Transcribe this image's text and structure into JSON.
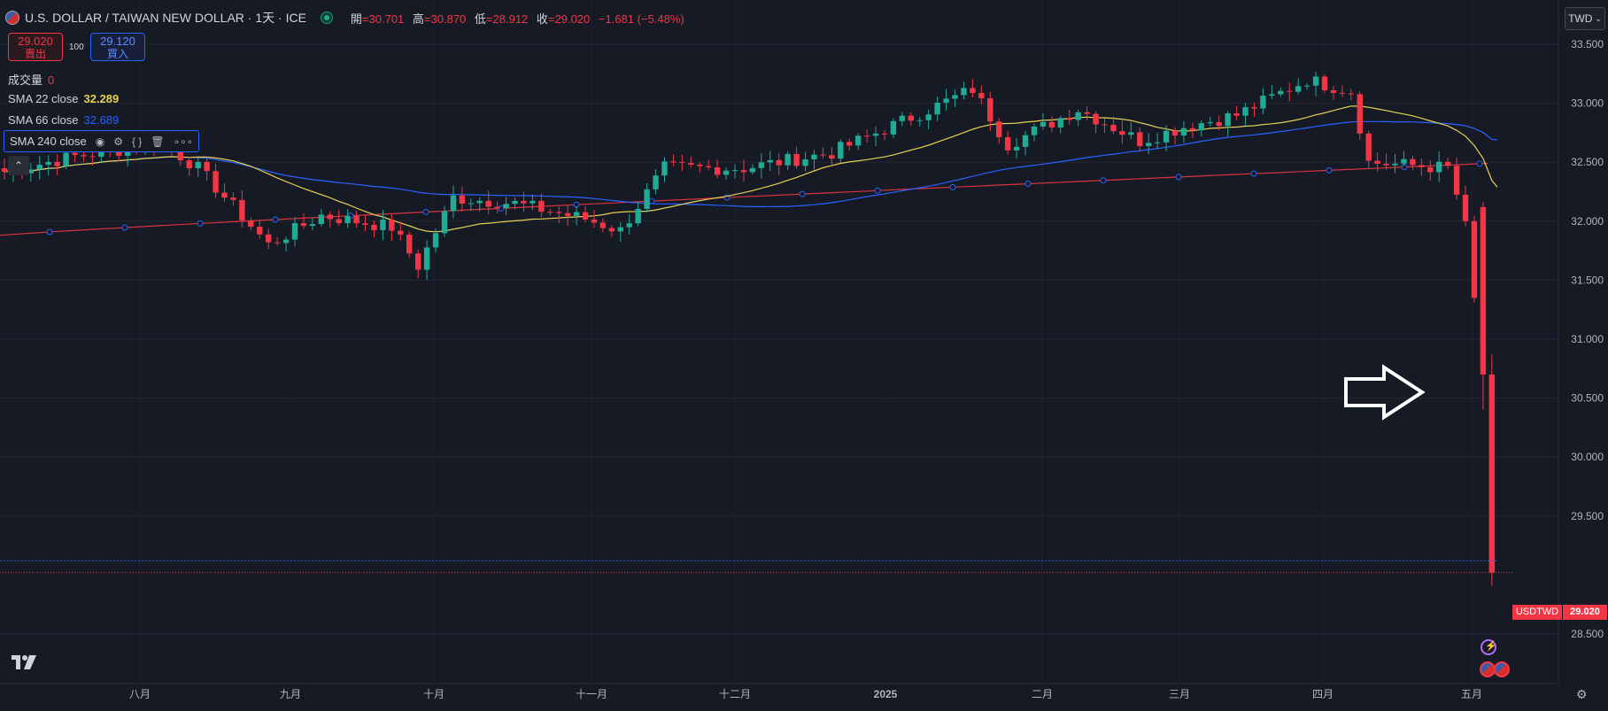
{
  "header": {
    "title": "U.S. DOLLAR / TAIWAN NEW DOLLAR · 1天 · ICE",
    "ohlc": [
      {
        "k": "開",
        "v": "=30.701"
      },
      {
        "k": "高",
        "v": "=30.870"
      },
      {
        "k": "低",
        "v": "=28.912"
      },
      {
        "k": "收",
        "v": "=29.020"
      },
      {
        "k": "",
        "v": "−1.681 (−5.48%)"
      }
    ]
  },
  "trade": {
    "sell_price": "29.020",
    "sell_label": "賣出",
    "buy_price": "29.120",
    "buy_label": "買入",
    "quantity": "100"
  },
  "indicators": {
    "volume_label": "成交量",
    "volume_value": "0",
    "sma22_label": "SMA 22 close",
    "sma22_value": "32.289",
    "sma66_label": "SMA 66 close",
    "sma66_value": "32.689",
    "sma240_label": "SMA 240 close"
  },
  "currency_button": "TWD",
  "price_tag": {
    "symbol": "USDTWD",
    "value": "29.020"
  },
  "colors": {
    "up": "#22ab94",
    "down": "#f23645",
    "sma22": "#e6d154",
    "sma66": "#2962ff",
    "sma240": "#f23645"
  },
  "chart_data": {
    "type": "candlestick",
    "ylim": [
      28.5,
      33.65
    ],
    "y_ticks": [
      "33.500",
      "33.000",
      "32.500",
      "32.000",
      "31.500",
      "31.000",
      "30.500",
      "30.000",
      "29.500",
      "28.500"
    ],
    "x_ticks": [
      "八月",
      "九月",
      "十月",
      "十一月",
      "十二月",
      "2025",
      "二月",
      "三月",
      "四月",
      "五月"
    ],
    "anchors": [
      {
        "t": 0,
        "c": 32.42
      },
      {
        "t": 8,
        "c": 32.55
      },
      {
        "t": 18,
        "c": 32.66
      },
      {
        "t": 22,
        "c": 32.45
      },
      {
        "t": 30,
        "c": 31.8
      },
      {
        "t": 36,
        "c": 32.05
      },
      {
        "t": 44,
        "c": 31.95
      },
      {
        "t": 47,
        "c": 31.62
      },
      {
        "t": 51,
        "c": 32.2
      },
      {
        "t": 58,
        "c": 32.15
      },
      {
        "t": 66,
        "c": 32.02
      },
      {
        "t": 70,
        "c": 31.92
      },
      {
        "t": 75,
        "c": 32.45
      },
      {
        "t": 84,
        "c": 32.45
      },
      {
        "t": 94,
        "c": 32.58
      },
      {
        "t": 106,
        "c": 32.98
      },
      {
        "t": 110,
        "c": 33.12
      },
      {
        "t": 114,
        "c": 32.65
      },
      {
        "t": 122,
        "c": 32.95
      },
      {
        "t": 129,
        "c": 32.68
      },
      {
        "t": 134,
        "c": 32.8
      },
      {
        "t": 140,
        "c": 32.9
      },
      {
        "t": 148,
        "c": 33.2
      },
      {
        "t": 153,
        "c": 33.1
      },
      {
        "t": 155,
        "c": 32.5
      },
      {
        "t": 164,
        "c": 32.45
      },
      {
        "t": 166,
        "c": 32.0
      },
      {
        "t": 168,
        "c": 30.7
      },
      {
        "t": 169,
        "c": 29.02
      }
    ],
    "n_candles": 170,
    "sma22": {
      "value": 32.289
    },
    "sma66": {
      "value": 32.689
    }
  }
}
